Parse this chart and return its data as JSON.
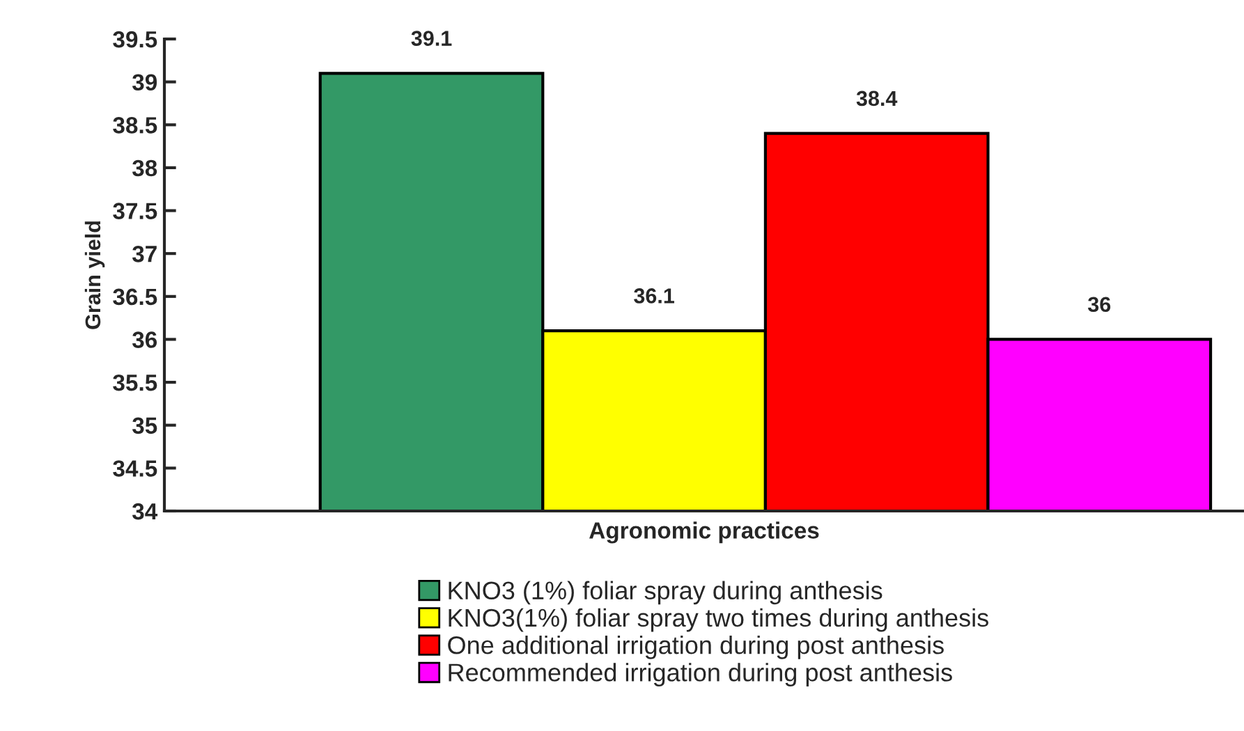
{
  "chart_data": {
    "type": "bar",
    "xlabel": "Agronomic practices",
    "ylabel": "Grain yield",
    "categories": [
      null
    ],
    "series": [
      {
        "name": "KNO3 (1%) foliar spray during anthesis",
        "color": "#339966",
        "values": [
          39.1
        ]
      },
      {
        "name": "KNO3(1%) foliar spray two times during anthesis",
        "color": "#ffff00",
        "values": [
          36.1
        ]
      },
      {
        "name": "One additional irrigation during post anthesis",
        "color": "#ff0000",
        "values": [
          38.4
        ]
      },
      {
        "name": "Recommended irrigation during post anthesis",
        "color": "#ff00ff",
        "values": [
          36
        ]
      }
    ],
    "ylim": [
      34,
      39.5
    ],
    "yticks": [
      34,
      34.5,
      35,
      35.5,
      36,
      36.5,
      37,
      37.5,
      38,
      38.5,
      39,
      39.5
    ],
    "data_labels": true,
    "legend": "bottom",
    "grid": false
  }
}
